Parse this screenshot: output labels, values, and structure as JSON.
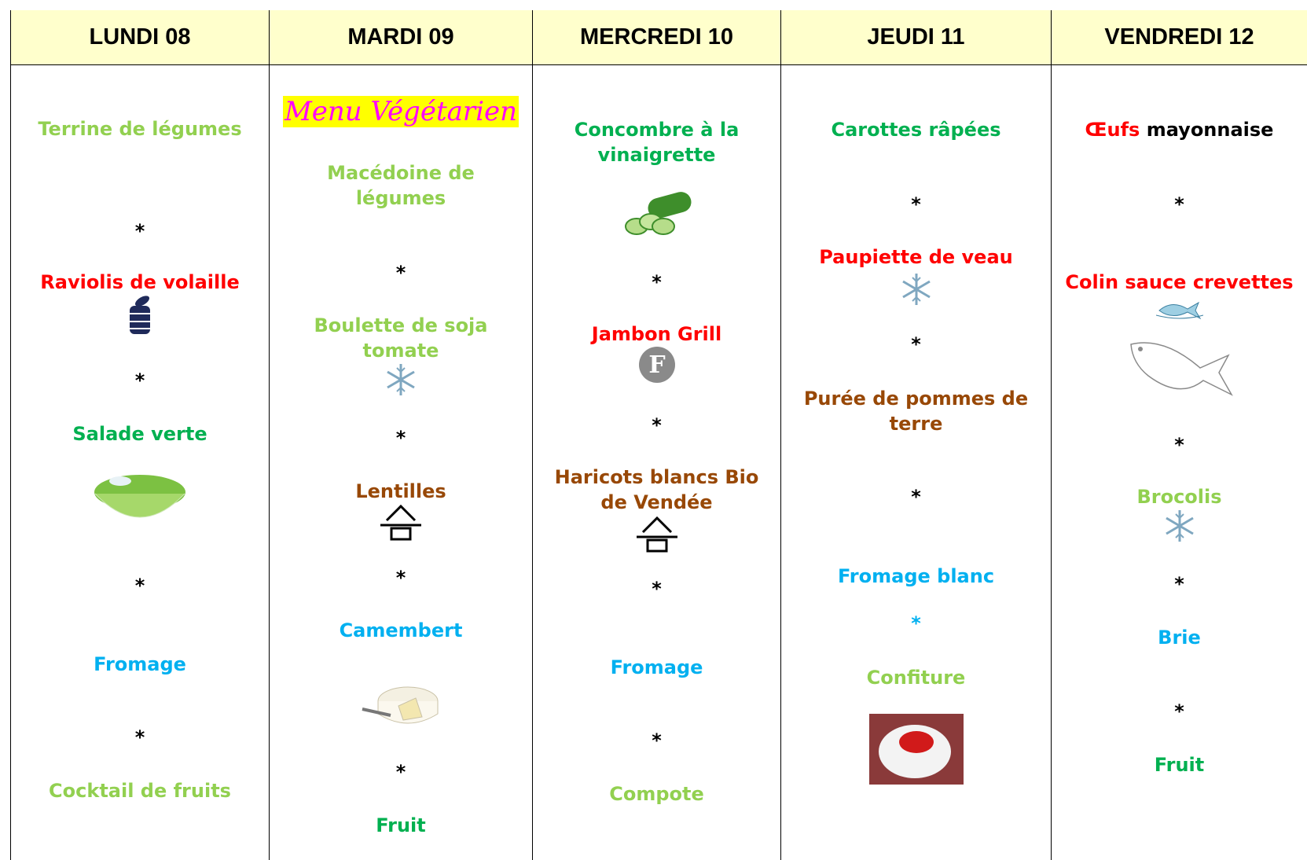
{
  "header": [
    "LUNDI 08",
    "MARDI 09",
    "MERCREDI 10",
    "JEUDI 11",
    "VENDREDI  12"
  ],
  "columns": [
    [
      "Terrine de légumes",
      "*",
      "Raviolis de volaille",
      "*",
      "Salade verte",
      "*",
      "Fromage",
      "*",
      "Cocktail de fruits"
    ],
    [
      "Menu Végétarien",
      "Macédoine de légumes",
      "*",
      "Boulette de soja tomate",
      "*",
      "Lentilles",
      "*",
      "Camembert",
      "*",
      "Fruit"
    ],
    [
      "Concombre à la vinaigrette",
      "*",
      "Jambon Grill",
      "*",
      "Haricots blancs Bio de Vendée",
      "*",
      "Fromage",
      "*",
      "Compote"
    ],
    [
      "Carottes râpées",
      "*",
      "Paupiette de veau",
      "*",
      "Purée de pommes de terre",
      "*",
      "Fromage blanc",
      "*",
      "Confiture"
    ],
    [
      [
        "Œufs",
        "mayonnaise"
      ],
      "*",
      "Colin sauce crevettes",
      "*",
      "Brocolis",
      "*",
      "Brie",
      "*",
      "Fruit"
    ]
  ]
}
